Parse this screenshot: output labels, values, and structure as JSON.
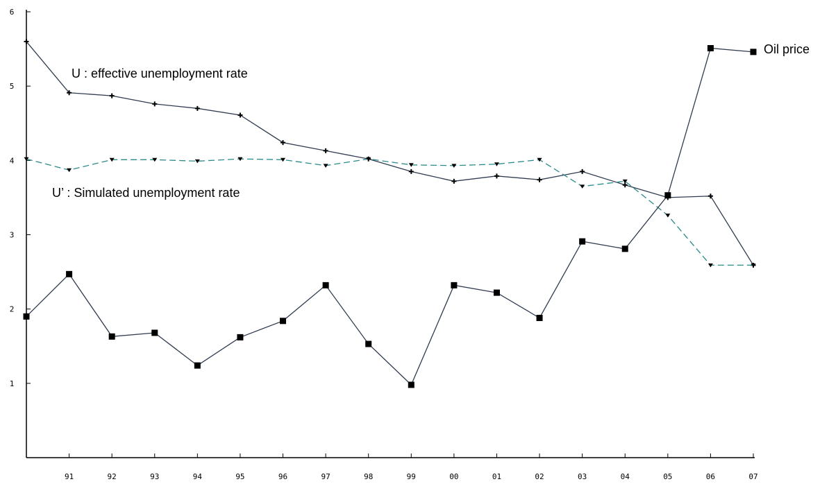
{
  "chart_data": {
    "type": "line",
    "title": "",
    "xlabel": "",
    "ylabel": "",
    "categories": [
      "",
      "91",
      "92",
      "93",
      "94",
      "95",
      "96",
      "97",
      "98",
      "99",
      "00",
      "01",
      "02",
      "03",
      "04",
      "05",
      "06",
      "07"
    ],
    "ylim": [
      0,
      6
    ],
    "yticks": [
      1,
      2,
      3,
      4,
      5,
      6
    ],
    "grid": false,
    "series": [
      {
        "name": "U : effective unemployment rate",
        "style": "solid",
        "marker": "plus",
        "color": "#2f3b4f",
        "values": [
          5.6,
          4.91,
          4.87,
          4.76,
          4.7,
          4.61,
          4.24,
          4.13,
          4.02,
          3.85,
          3.72,
          3.79,
          3.74,
          3.85,
          3.67,
          3.5,
          3.52,
          2.59
        ]
      },
      {
        "name": "U' : Simulated unemployment rate",
        "style": "dashed",
        "marker": "triangle-down",
        "color": "#2a8a8a",
        "values": [
          4.02,
          3.87,
          4.01,
          4.01,
          3.99,
          4.02,
          4.01,
          3.93,
          4.02,
          3.94,
          3.93,
          3.95,
          4.01,
          3.65,
          3.72,
          3.26,
          2.59,
          2.59
        ]
      },
      {
        "name": "Oil price",
        "style": "solid",
        "marker": "square",
        "color": "#2f3b4f",
        "values": [
          1.9,
          2.47,
          1.63,
          1.68,
          1.24,
          1.62,
          1.84,
          2.32,
          1.53,
          0.98,
          2.32,
          2.22,
          1.88,
          2.91,
          2.81,
          3.53,
          5.51,
          5.46
        ]
      }
    ],
    "annotations": [
      {
        "text": "U : effective unemployment rate",
        "series": 0
      },
      {
        "text": "U’ : Simulated unemployment rate",
        "series": 1
      },
      {
        "text": "Oil price",
        "series": 2
      }
    ]
  }
}
